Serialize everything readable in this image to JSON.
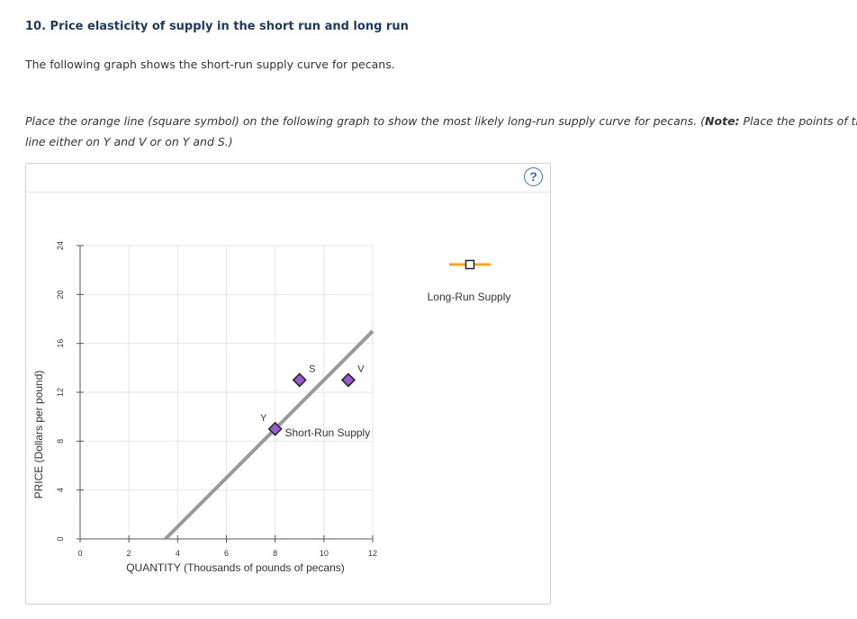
{
  "question": {
    "title": "10. Price elasticity of supply in the short run and long run",
    "intro": "The following graph shows the short-run supply curve for pecans.",
    "instruction_a": "Place the orange line (square symbol) on the following graph to show the most likely long-run supply curve for pecans. (",
    "instruction_note": "Note:",
    "instruction_b": " Place the points of the",
    "instruction_c": "line either on Y and V or on Y and S.)"
  },
  "help": {
    "label": "?"
  },
  "legend": {
    "long_run_label": "Long-Run Supply",
    "long_run_color": "#f5a623"
  },
  "colors": {
    "short_run_line": "#999999",
    "point_fill": "#9b59d0",
    "point_stroke": "#222222",
    "grid": "#e6e6e6",
    "axis": "#555555"
  },
  "chart_data": {
    "type": "line",
    "xlabel": "QUANTITY (Thousands of pounds of pecans)",
    "ylabel": "PRICE (Dollars per pound)",
    "xlim": [
      0,
      12
    ],
    "ylim": [
      0,
      24
    ],
    "x_ticks": [
      0,
      2,
      4,
      6,
      8,
      10,
      12
    ],
    "y_ticks": [
      0,
      4,
      8,
      12,
      16,
      20,
      24
    ],
    "grid": true,
    "series": [
      {
        "name": "Short-Run Supply",
        "x": [
          3.5,
          12
        ],
        "y": [
          0,
          17
        ]
      }
    ],
    "points": [
      {
        "label": "Y",
        "x": 8,
        "y": 9
      },
      {
        "label": "S",
        "x": 9,
        "y": 13
      },
      {
        "label": "V",
        "x": 11,
        "y": 13
      }
    ],
    "curve_label": {
      "text": "Short-Run Supply",
      "x": 8.4,
      "y": 8.4
    }
  }
}
